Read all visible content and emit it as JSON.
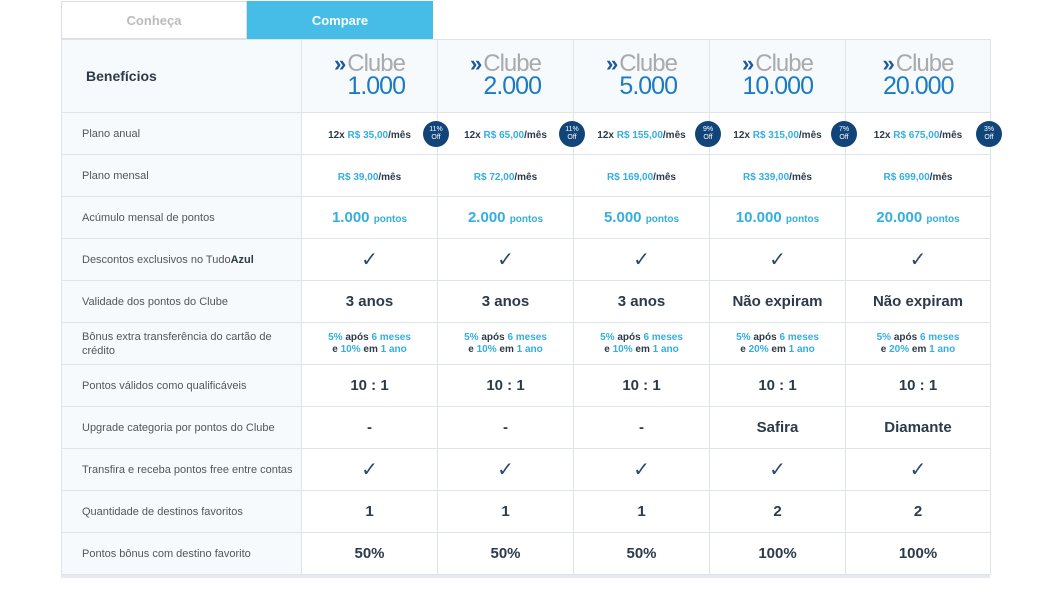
{
  "tabs": [
    {
      "label": "Conheça",
      "active": false
    },
    {
      "label": "Compare",
      "active": true
    }
  ],
  "header": {
    "title": "Benefícios",
    "club_word": "Clube",
    "clubs": [
      "1.000",
      "2.000",
      "5.000",
      "10.000",
      "20.000"
    ]
  },
  "rows": [
    {
      "label": "Plano anual",
      "type": "annual",
      "cells": [
        {
          "prefix": "12x",
          "price": "R$ 35,00",
          "suffix": "/mês",
          "badge_pct": "11%",
          "badge_off": "Off"
        },
        {
          "prefix": "12x",
          "price": "R$ 65,00",
          "suffix": "/mês",
          "badge_pct": "11%",
          "badge_off": "Off"
        },
        {
          "prefix": "12x",
          "price": "R$ 155,00",
          "suffix": "/mês",
          "badge_pct": "9%",
          "badge_off": "Off"
        },
        {
          "prefix": "12x",
          "price": "R$ 315,00",
          "suffix": "/mês",
          "badge_pct": "7%",
          "badge_off": "Off"
        },
        {
          "prefix": "12x",
          "price": "R$ 675,00",
          "suffix": "/mês",
          "badge_pct": "3%",
          "badge_off": "Off"
        }
      ]
    },
    {
      "label": "Plano mensal",
      "type": "monthly",
      "cells": [
        {
          "price": "R$ 39,00",
          "suffix": "/mês"
        },
        {
          "price": "R$ 72,00",
          "suffix": "/mês"
        },
        {
          "price": "R$ 169,00",
          "suffix": "/mês"
        },
        {
          "price": "R$ 339,00",
          "suffix": "/mês"
        },
        {
          "price": "R$ 699,00",
          "suffix": "/mês"
        }
      ]
    },
    {
      "label": "Acúmulo mensal de pontos",
      "type": "points",
      "cells": [
        {
          "value": "1.000",
          "unit": "pontos"
        },
        {
          "value": "2.000",
          "unit": "pontos"
        },
        {
          "value": "5.000",
          "unit": "pontos"
        },
        {
          "value": "10.000",
          "unit": "pontos"
        },
        {
          "value": "20.000",
          "unit": "pontos"
        }
      ]
    },
    {
      "label": "Descontos exclusivos no Tudo",
      "label_bold": "Azul",
      "type": "check",
      "cells": [
        "✓",
        "✓",
        "✓",
        "✓",
        "✓"
      ]
    },
    {
      "label": "Validade dos pontos do Clube",
      "type": "big",
      "cells": [
        "3 anos",
        "3 anos",
        "3 anos",
        "Não expiram",
        "Não expiram"
      ]
    },
    {
      "label": "Bônus extra transferência do cartão de crédito",
      "type": "bonus",
      "cells": [
        {
          "p1": "5%",
          "a": "após",
          "m": "6 meses",
          "e": "e",
          "p2": "10%",
          "em": "em",
          "y": "1 ano"
        },
        {
          "p1": "5%",
          "a": "após",
          "m": "6 meses",
          "e": "e",
          "p2": "10%",
          "em": "em",
          "y": "1 ano"
        },
        {
          "p1": "5%",
          "a": "após",
          "m": "6 meses",
          "e": "e",
          "p2": "10%",
          "em": "em",
          "y": "1 ano"
        },
        {
          "p1": "5%",
          "a": "após",
          "m": "6 meses",
          "e": "e",
          "p2": "20%",
          "em": "em",
          "y": "1 ano"
        },
        {
          "p1": "5%",
          "a": "após",
          "m": "6 meses",
          "e": "e",
          "p2": "20%",
          "em": "em",
          "y": "1 ano"
        }
      ]
    },
    {
      "label": "Pontos válidos como qualificáveis",
      "type": "big",
      "cells": [
        "10 : 1",
        "10 : 1",
        "10 : 1",
        "10 : 1",
        "10 : 1"
      ]
    },
    {
      "label": "Upgrade categoria por pontos do Clube",
      "type": "big",
      "cells": [
        "-",
        "-",
        "-",
        "Safira",
        "Diamante"
      ]
    },
    {
      "label": "Transfira e receba pontos free entre contas",
      "type": "check",
      "cells": [
        "✓",
        "✓",
        "✓",
        "✓",
        "✓"
      ]
    },
    {
      "label": "Quantidade de destinos favoritos",
      "type": "big",
      "cells": [
        "1",
        "1",
        "1",
        "2",
        "2"
      ]
    },
    {
      "label": "Pontos bônus com destino favorito",
      "type": "big",
      "cells": [
        "50%",
        "50%",
        "50%",
        "100%",
        "100%"
      ]
    }
  ]
}
